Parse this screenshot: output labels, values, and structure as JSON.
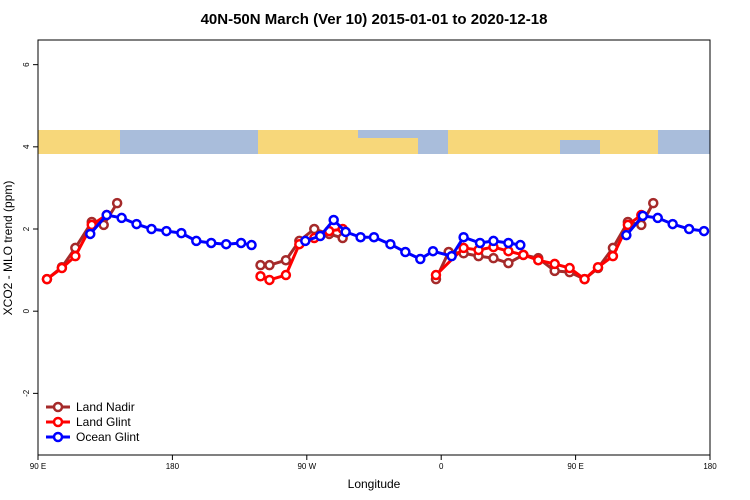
{
  "chart_data": {
    "type": "line",
    "title": "40N-50N March (Ver 10)   2015-01-01 to 2020-12-18",
    "x_label": "Longitude",
    "y_label": "XCO2 - MLO trend (ppm)",
    "xlim": [
      90,
      540
    ],
    "ylim": [
      -3.5,
      6.6
    ],
    "xticks": [
      {
        "value": 90,
        "label": "90 E"
      },
      180,
      {
        "value": 270,
        "label": "90 W"
      },
      {
        "value": 360,
        "label": "0"
      },
      {
        "value": 450,
        "label": "90 E"
      },
      {
        "value": 540,
        "label": "180"
      }
    ],
    "yticks": [
      -2,
      0,
      2,
      4,
      6
    ],
    "legend": "bottom-left",
    "series": [
      {
        "name": "Land Nadir",
        "color": "#a52a2a",
        "x": [
          96,
          106,
          115,
          126,
          134,
          143,
          null,
          239,
          245,
          256,
          265,
          275,
          285,
          294,
          null,
          356.5,
          365,
          375,
          385,
          395,
          405,
          415,
          425,
          436,
          446,
          456,
          465,
          475,
          485,
          494,
          502
        ],
        "values": [
          0.78,
          1.07,
          1.54,
          2.17,
          2.1,
          2.63,
          null,
          1.12,
          1.12,
          1.24,
          1.71,
          2.0,
          1.88,
          1.78,
          null,
          0.78,
          1.44,
          1.41,
          1.34,
          1.29,
          1.17,
          1.37,
          1.29,
          0.98,
          0.95,
          0.78,
          1.05,
          1.54,
          2.17,
          2.1,
          2.63
        ]
      },
      {
        "name": "Land Glint",
        "color": "#ff0000",
        "x": [
          96,
          106,
          115,
          126,
          136,
          null,
          239,
          245,
          256,
          265,
          275,
          285,
          294,
          null,
          356.5,
          375,
          385,
          395,
          405,
          415,
          425,
          436,
          446,
          456,
          465,
          475,
          485,
          494
        ],
        "values": [
          0.78,
          1.05,
          1.34,
          2.1,
          2.34,
          null,
          0.85,
          0.76,
          0.88,
          1.63,
          1.78,
          1.95,
          2.0,
          null,
          0.88,
          1.54,
          1.49,
          1.56,
          1.46,
          1.37,
          1.24,
          1.15,
          1.05,
          0.78,
          1.07,
          1.34,
          2.1,
          2.34
        ]
      },
      {
        "name": "Ocean Glint",
        "color": "#0000ff",
        "x": [
          125,
          136,
          146,
          156,
          166,
          176,
          186,
          196,
          206,
          216,
          226,
          233,
          null,
          269,
          279,
          288,
          296,
          306,
          315,
          326,
          336,
          346,
          354.5,
          367,
          375,
          386,
          395,
          405,
          413,
          null,
          484,
          495,
          505,
          515,
          526,
          536
        ],
        "values": [
          1.88,
          2.34,
          2.27,
          2.12,
          2.0,
          1.95,
          1.9,
          1.71,
          1.66,
          1.63,
          1.66,
          1.61,
          null,
          1.71,
          1.83,
          2.22,
          1.93,
          1.8,
          1.8,
          1.63,
          1.44,
          1.27,
          1.46,
          1.34,
          1.8,
          1.66,
          1.71,
          1.66,
          1.61,
          null,
          1.85,
          2.32,
          2.27,
          2.12,
          2.0,
          1.95
        ]
      }
    ]
  }
}
